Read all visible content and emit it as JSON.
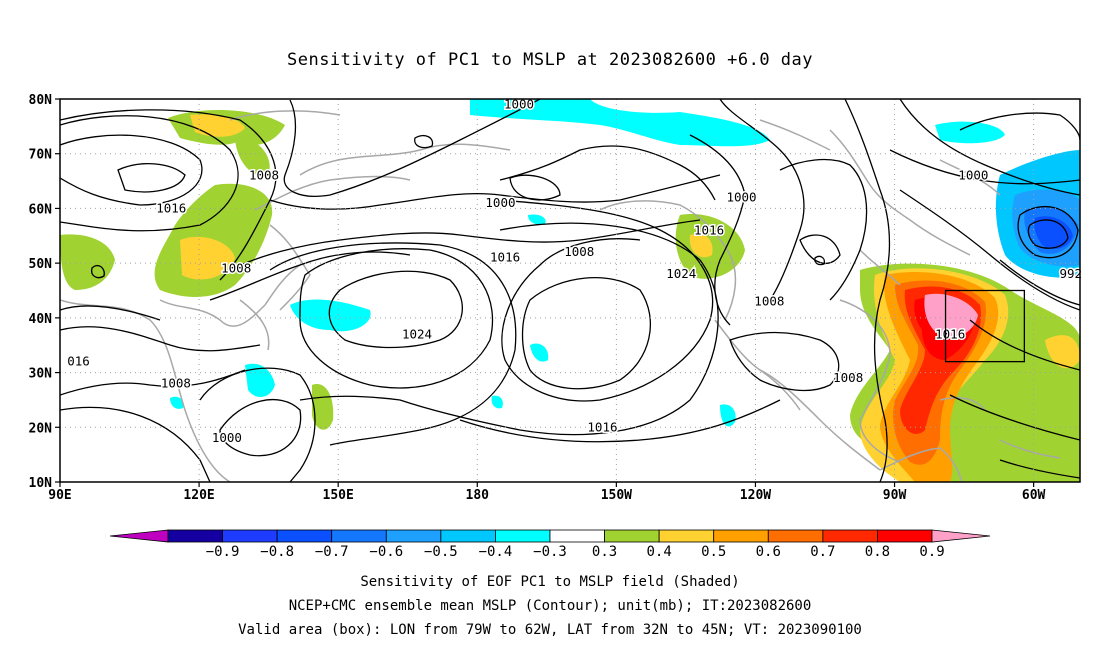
{
  "title": "Sensitivity of PC1 to MSLP at 2023082600 +6.0 day",
  "axes": {
    "lat_labels": [
      "80N",
      "70N",
      "60N",
      "50N",
      "40N",
      "30N",
      "20N",
      "10N"
    ],
    "lon_labels": [
      "90E",
      "120E",
      "150E",
      "180",
      "150W",
      "120W",
      "90W",
      "60W"
    ]
  },
  "contour_labels": [
    {
      "text": "1000",
      "lon": -171,
      "lat": 79
    },
    {
      "text": "1008",
      "lon": 134,
      "lat": 66
    },
    {
      "text": "1016",
      "lon": 114,
      "lat": 60
    },
    {
      "text": "1000",
      "lon": -175,
      "lat": 61
    },
    {
      "text": "1000",
      "lon": -123,
      "lat": 62
    },
    {
      "text": "1016",
      "lon": -130,
      "lat": 56
    },
    {
      "text": "1008",
      "lon": -158,
      "lat": 52
    },
    {
      "text": "1016",
      "lon": -174,
      "lat": 51
    },
    {
      "text": "1008",
      "lon": 128,
      "lat": 49
    },
    {
      "text": "1024",
      "lon": -136,
      "lat": 48
    },
    {
      "text": "1008",
      "lon": -117,
      "lat": 43
    },
    {
      "text": "1024",
      "lon": 167,
      "lat": 37
    },
    {
      "text": "1016",
      "lon": -78,
      "lat": 37
    },
    {
      "text": "1008",
      "lon": -100,
      "lat": 29
    },
    {
      "text": "1008",
      "lon": 115,
      "lat": 28
    },
    {
      "text": "016",
      "lon": 94,
      "lat": 32
    },
    {
      "text": "1016",
      "lon": -153,
      "lat": 20
    },
    {
      "text": "1000",
      "lon": 126,
      "lat": 18
    },
    {
      "text": "1000",
      "lon": -73,
      "lat": 66
    },
    {
      "text": "992",
      "lon": -52,
      "lat": 48
    }
  ],
  "valid_box": {
    "lon_min": -79,
    "lon_max": -62,
    "lat_min": 32,
    "lat_max": 45
  },
  "colorbar": {
    "labels": [
      "−0.9",
      "−0.8",
      "−0.7",
      "−0.6",
      "−0.5",
      "−0.4",
      "−0.3",
      "0.3",
      "0.4",
      "0.5",
      "0.6",
      "0.7",
      "0.8",
      "0.9"
    ],
    "colors": [
      "#1400a0",
      "#1e3cff",
      "#0a50ff",
      "#1478ff",
      "#1ea0ff",
      "#00c8ff",
      "#00ffff",
      "#ffffff",
      "#a0d232",
      "#ffd232",
      "#ffa000",
      "#ff6e00",
      "#ff2800",
      "#ff0000"
    ],
    "low_end": "#c000c0",
    "high_end": "#ffa0c8"
  },
  "footer": {
    "line1": "Sensitivity of EOF PC1 to MSLP field (Shaded)",
    "line2": "NCEP+CMC ensemble mean MSLP (Contour); unit(mb); IT:2023082600",
    "line3": "Valid area (box): LON from 79W to 62W, LAT from 32N to 45N; VT: 2023090100"
  }
}
